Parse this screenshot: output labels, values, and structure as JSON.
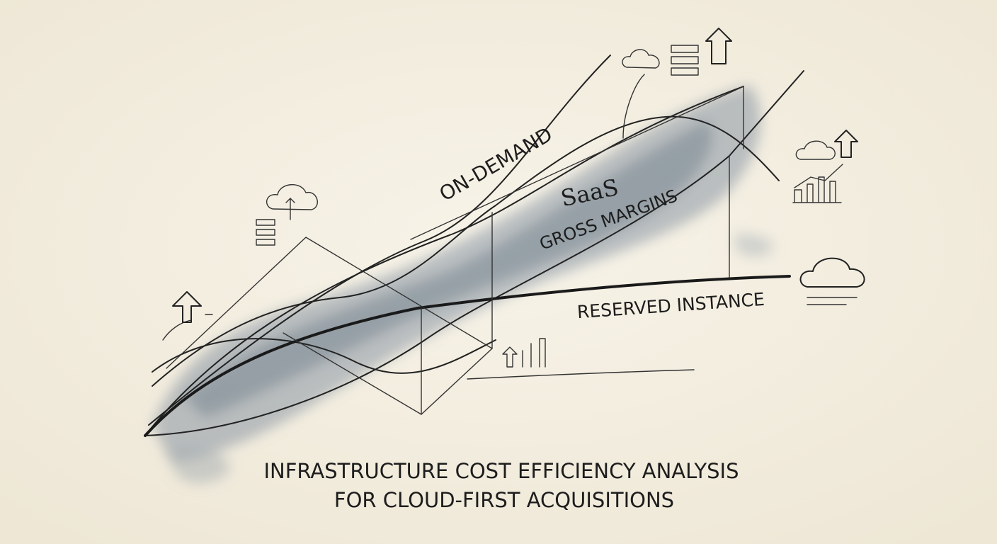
{
  "labels": {
    "on_demand": "ON-DEMAND",
    "saas": "SaaS",
    "gross_margins": "GROSS MARGINS",
    "reserved_instance": "RESERVED INSTANCE"
  },
  "caption": {
    "line1": "INFRASTRUCTURE COST EFFICIENCY ANALYSIS",
    "line2": "FOR CLOUD-FIRST ACQUISITIONS"
  }
}
